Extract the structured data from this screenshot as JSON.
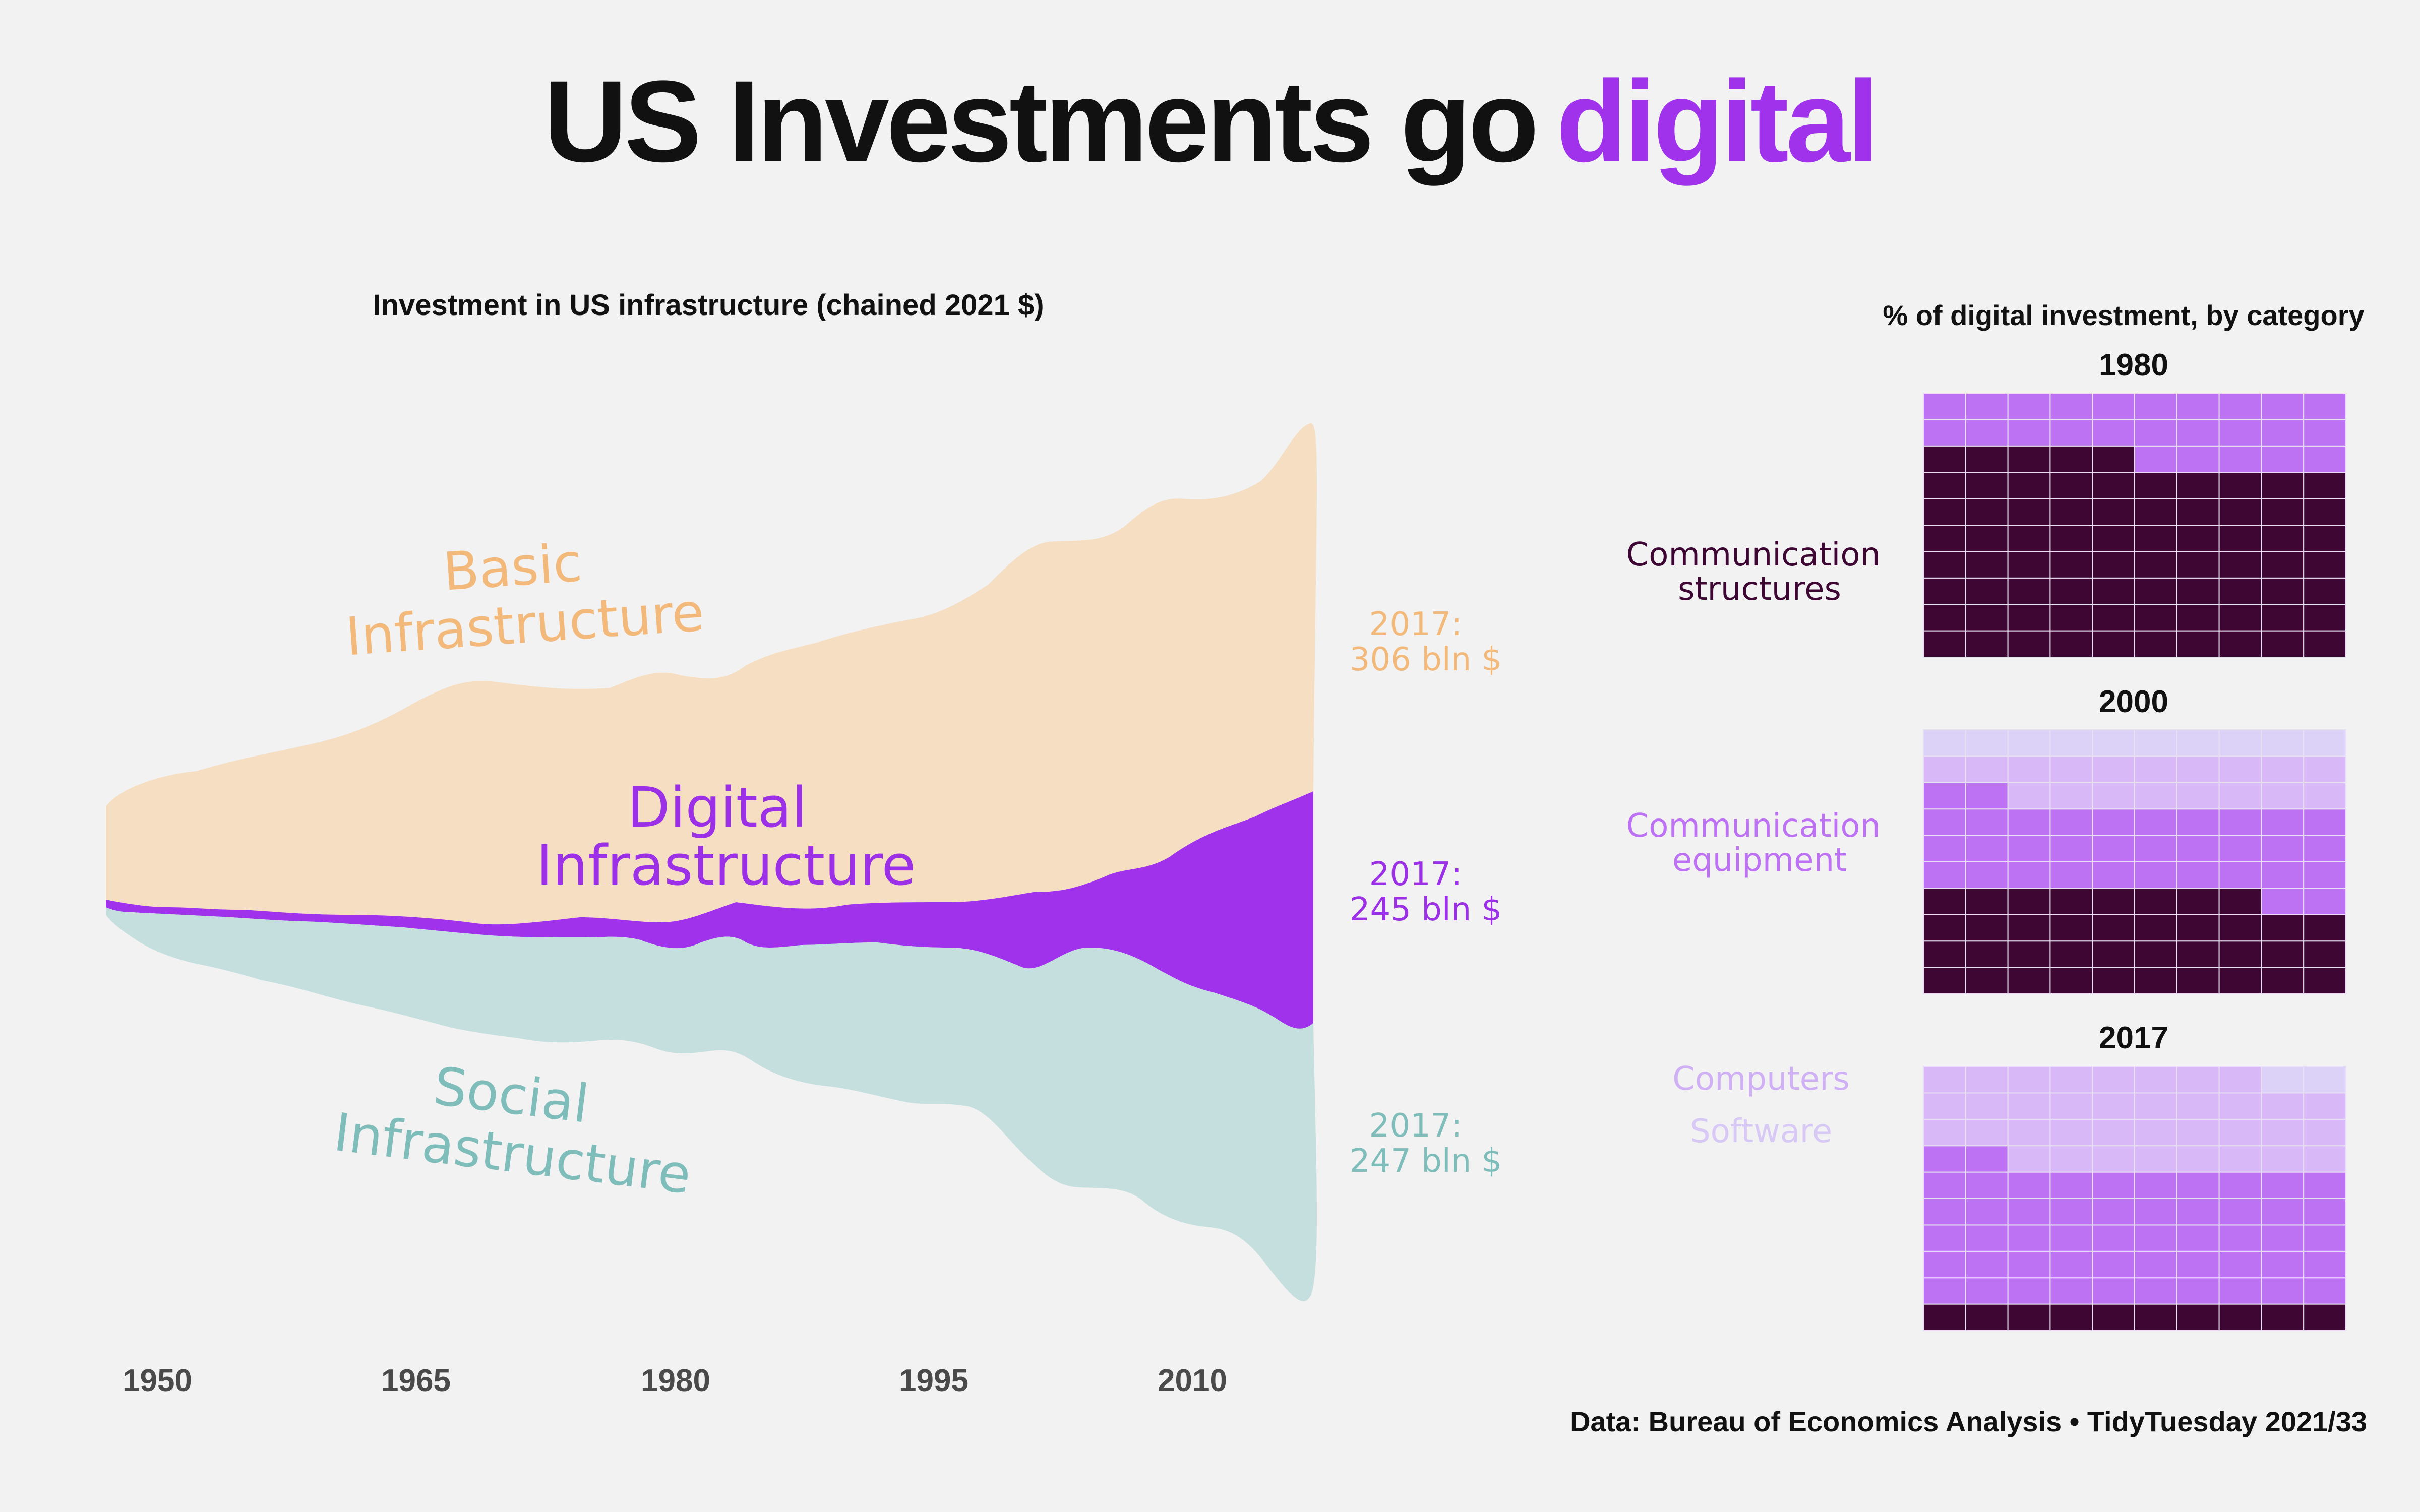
{
  "title": {
    "main": "US Investments go",
    "accent": "digital"
  },
  "colors": {
    "basic": "#f5dec2",
    "basic_text": "#f3b97a",
    "digital": "#a032ec",
    "digital_text": "#9b30e6",
    "social": "#c5dfdf",
    "social_text": "#7fbdbb",
    "comm_structures": "#3d0633",
    "comm_equipment": "#bc72f2",
    "computers": "#d8b8f6",
    "software": "#dcd1f7",
    "grid": "#e9dff3"
  },
  "stream": {
    "subtitle": "Investment in US infrastructure (chained 2021 $)",
    "x_ticks": [
      "1950",
      "1965",
      "1980",
      "1995",
      "2010"
    ],
    "labels": {
      "basic": [
        "Basic",
        "Infrastructure"
      ],
      "digital": [
        "Digital",
        "Infrastructure"
      ],
      "social": [
        "Social",
        "Infrastructure"
      ]
    },
    "end_labels": {
      "basic": [
        "2017:",
        "306 bln $"
      ],
      "digital": [
        "2017:",
        "245 bln $"
      ],
      "social": [
        "2017:",
        "247 bln $"
      ]
    }
  },
  "chart_data": {
    "type": "area",
    "subtype": "streamgraph",
    "title": "Investment in US infrastructure (chained 2021 $)",
    "xlabel": "",
    "ylabel": "",
    "x": [
      1947,
      1950,
      1955,
      1960,
      1965,
      1970,
      1975,
      1980,
      1983,
      1985,
      1990,
      1995,
      2000,
      2003,
      2005,
      2010,
      2015,
      2017
    ],
    "series": [
      {
        "name": "Basic Infrastructure",
        "values": [
          60,
          80,
          95,
          110,
          135,
          140,
          150,
          160,
          165,
          175,
          185,
          210,
          235,
          245,
          250,
          265,
          285,
          306
        ]
      },
      {
        "name": "Digital Infrastructure",
        "values": [
          2,
          3,
          4,
          6,
          8,
          10,
          12,
          15,
          18,
          20,
          25,
          35,
          60,
          80,
          95,
          120,
          200,
          245
        ]
      },
      {
        "name": "Social Infrastructure",
        "values": [
          25,
          40,
          55,
          70,
          85,
          90,
          95,
          100,
          105,
          115,
          130,
          145,
          160,
          170,
          180,
          200,
          225,
          247
        ]
      }
    ],
    "annotations": [
      "2017: 306 bln $",
      "2017: 245 bln $",
      "2017: 247 bln $"
    ]
  },
  "waffle": {
    "title": "% of digital investment, by category",
    "categories": [
      {
        "name": "Communication structures",
        "label_lines": [
          "Communication",
          "structures"
        ]
      },
      {
        "name": "Communication equipment",
        "label_lines": [
          "Communication",
          "equipment"
        ]
      },
      {
        "name": "Computers",
        "label_lines": [
          "Computers"
        ]
      },
      {
        "name": "Software",
        "label_lines": [
          "Software"
        ]
      }
    ],
    "panels": [
      {
        "year": "1980",
        "percent": {
          "Communication structures": 75,
          "Communication equipment": 25,
          "Computers": 0,
          "Software": 0
        }
      },
      {
        "year": "2000",
        "percent": {
          "Communication structures": 38,
          "Communication equipment": 34,
          "Computers": 18,
          "Software": 10
        }
      },
      {
        "year": "2017",
        "percent": {
          "Communication structures": 10,
          "Communication equipment": 52,
          "Computers": 36,
          "Software": 2
        }
      }
    ]
  },
  "caption": "Data: Bureau of Economics Analysis • TidyTuesday 2021/33"
}
